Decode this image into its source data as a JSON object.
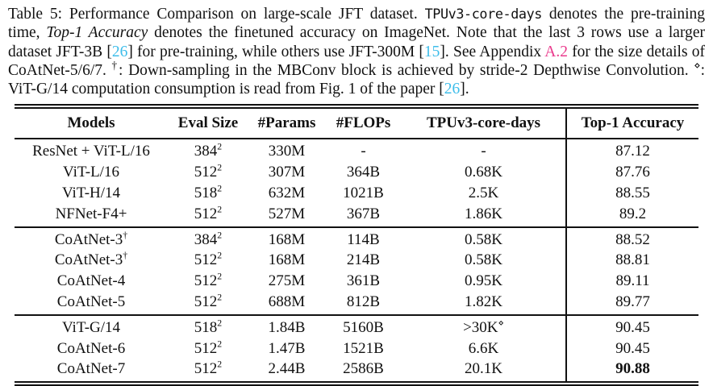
{
  "colors": {
    "text": "#111111",
    "citation_link": "#3dbdea",
    "appendix_link": "#ea3a8c"
  },
  "caption": {
    "segments": [
      {
        "text": "Table 5: Performance Comparison on large-scale JFT dataset. ",
        "style": "plain"
      },
      {
        "text": "TPUv3-core-days",
        "style": "mono"
      },
      {
        "text": " denotes the pre-training time, ",
        "style": "plain"
      },
      {
        "text": "Top-1 Accuracy",
        "style": "italic"
      },
      {
        "text": " denotes the finetuned accuracy on ImageNet. Note that the last 3 rows use a larger dataset JFT-3B [",
        "style": "plain"
      },
      {
        "text": "26",
        "style": "cite"
      },
      {
        "text": "] for pre-training, while others use JFT-300M [",
        "style": "plain"
      },
      {
        "text": "15",
        "style": "cite"
      },
      {
        "text": "]. See Appendix ",
        "style": "plain"
      },
      {
        "text": "A.2",
        "style": "reflink"
      },
      {
        "text": " for the size details of CoAtNet-5/6/7. ",
        "style": "plain"
      },
      {
        "text": "†",
        "style": "sup"
      },
      {
        "text": ": Down-sampling in the MBConv block is achieved by stride-2 Depthwise Convolution. ",
        "style": "plain"
      },
      {
        "text": "⋄",
        "style": "sup"
      },
      {
        "text": ": ViT-G/14 computation consumption is read from Fig. 1 of the paper [",
        "style": "plain"
      },
      {
        "text": "26",
        "style": "cite"
      },
      {
        "text": "].",
        "style": "plain"
      }
    ]
  },
  "table": {
    "columns": [
      "Models",
      "Eval Size",
      "#Params",
      "#FLOPs",
      "TPUv3-core-days",
      "Top-1 Accuracy"
    ],
    "groups": [
      {
        "rows": [
          {
            "model": "ResNet + ViT-L/16",
            "model_sup": "",
            "eval": "384",
            "eval_sup": "2",
            "params": "330M",
            "flops": "-",
            "tpu": "-",
            "tpu_sup": "",
            "acc": "87.12",
            "acc_bold": false
          },
          {
            "model": "ViT-L/16",
            "model_sup": "",
            "eval": "512",
            "eval_sup": "2",
            "params": "307M",
            "flops": "364B",
            "tpu": "0.68K",
            "tpu_sup": "",
            "acc": "87.76",
            "acc_bold": false
          },
          {
            "model": "ViT-H/14",
            "model_sup": "",
            "eval": "518",
            "eval_sup": "2",
            "params": "632M",
            "flops": "1021B",
            "tpu": "2.5K",
            "tpu_sup": "",
            "acc": "88.55",
            "acc_bold": false
          },
          {
            "model": "NFNet-F4+",
            "model_sup": "",
            "eval": "512",
            "eval_sup": "2",
            "params": "527M",
            "flops": "367B",
            "tpu": "1.86K",
            "tpu_sup": "",
            "acc": "89.2",
            "acc_bold": false
          }
        ]
      },
      {
        "rows": [
          {
            "model": "CoAtNet-3",
            "model_sup": "†",
            "eval": "384",
            "eval_sup": "2",
            "params": "168M",
            "flops": "114B",
            "tpu": "0.58K",
            "tpu_sup": "",
            "acc": "88.52",
            "acc_bold": false
          },
          {
            "model": "CoAtNet-3",
            "model_sup": "†",
            "eval": "512",
            "eval_sup": "2",
            "params": "168M",
            "flops": "214B",
            "tpu": "0.58K",
            "tpu_sup": "",
            "acc": "88.81",
            "acc_bold": false
          },
          {
            "model": "CoAtNet-4",
            "model_sup": "",
            "eval": "512",
            "eval_sup": "2",
            "params": "275M",
            "flops": "361B",
            "tpu": "0.95K",
            "tpu_sup": "",
            "acc": "89.11",
            "acc_bold": false
          },
          {
            "model": "CoAtNet-5",
            "model_sup": "",
            "eval": "512",
            "eval_sup": "2",
            "params": "688M",
            "flops": "812B",
            "tpu": "1.82K",
            "tpu_sup": "",
            "acc": "89.77",
            "acc_bold": false
          }
        ]
      },
      {
        "rows": [
          {
            "model": "ViT-G/14",
            "model_sup": "",
            "eval": "518",
            "eval_sup": "2",
            "params": "1.84B",
            "flops": "5160B",
            "tpu": ">30K",
            "tpu_sup": "⋄",
            "acc": "90.45",
            "acc_bold": false
          },
          {
            "model": "CoAtNet-6",
            "model_sup": "",
            "eval": "512",
            "eval_sup": "2",
            "params": "1.47B",
            "flops": "1521B",
            "tpu": "6.6K",
            "tpu_sup": "",
            "acc": "90.45",
            "acc_bold": false
          },
          {
            "model": "CoAtNet-7",
            "model_sup": "",
            "eval": "512",
            "eval_sup": "2",
            "params": "2.44B",
            "flops": "2586B",
            "tpu": "20.1K",
            "tpu_sup": "",
            "acc": "90.88",
            "acc_bold": true
          }
        ]
      }
    ]
  }
}
